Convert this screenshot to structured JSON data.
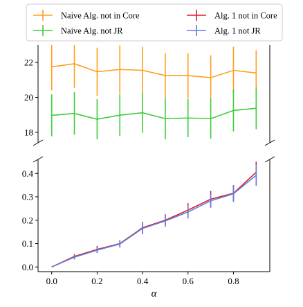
{
  "chart_data": [
    {
      "panel": "top",
      "type": "line",
      "error_bars": true,
      "x": [
        0.0,
        0.1,
        0.2,
        0.3,
        0.4,
        0.5,
        0.6,
        0.7,
        0.8,
        0.9
      ],
      "ylim": [
        17.4,
        23.0
      ],
      "yticks": [
        "18",
        "20",
        "22"
      ],
      "series": [
        {
          "name": "Naive Alg. not in Core",
          "color": "#ff9f1c",
          "values": [
            21.75,
            21.93,
            21.47,
            21.6,
            21.55,
            21.25,
            21.25,
            21.13,
            21.55,
            21.4
          ],
          "errors": [
            1.35,
            1.38,
            1.38,
            1.38,
            1.35,
            1.28,
            1.28,
            1.28,
            1.35,
            1.3
          ]
        },
        {
          "name": "Naive Alg. not JR",
          "color": "#3dcc3d",
          "values": [
            18.97,
            19.08,
            18.75,
            18.98,
            19.12,
            18.78,
            18.82,
            18.78,
            19.25,
            19.38
          ],
          "errors": [
            1.2,
            1.22,
            1.15,
            1.2,
            1.15,
            1.18,
            1.1,
            1.15,
            1.2,
            1.2
          ]
        }
      ]
    },
    {
      "panel": "bottom",
      "type": "line",
      "error_bars": true,
      "x": [
        0.0,
        0.1,
        0.2,
        0.3,
        0.4,
        0.5,
        0.6,
        0.7,
        0.8,
        0.9
      ],
      "ylim": [
        -0.02,
        0.46
      ],
      "yticks": [
        "0.0",
        "0.1",
        "0.2",
        "0.3",
        "0.4"
      ],
      "xticks": [
        "0.0",
        "0.2",
        "0.4",
        "0.6",
        "0.8"
      ],
      "xlabel": "α",
      "series": [
        {
          "name": "Alg. 1 not in Core",
          "color": "#dd1c2c",
          "values": [
            0.0,
            0.045,
            0.075,
            0.1,
            0.168,
            0.2,
            0.243,
            0.29,
            0.315,
            0.405
          ],
          "errors": [
            0.0,
            0.01,
            0.015,
            0.015,
            0.025,
            0.025,
            0.03,
            0.035,
            0.035,
            0.045
          ]
        },
        {
          "name": "Alg. 1 not JR",
          "color": "#5b7fdd",
          "values": [
            0.0,
            0.042,
            0.072,
            0.098,
            0.165,
            0.197,
            0.235,
            0.283,
            0.313,
            0.392
          ],
          "errors": [
            0.0,
            0.01,
            0.012,
            0.015,
            0.025,
            0.025,
            0.028,
            0.03,
            0.035,
            0.045
          ]
        }
      ]
    }
  ],
  "legend": {
    "placement": "top",
    "items": [
      {
        "label": "Naive Alg. not in Core",
        "color": "#ff9f1c"
      },
      {
        "label": "Alg. 1 not in Core",
        "color": "#dd1c2c"
      },
      {
        "label": "Naive Alg. not JR",
        "color": "#3dcc3d"
      },
      {
        "label": "Alg. 1 not JR",
        "color": "#5b7fdd"
      }
    ]
  }
}
